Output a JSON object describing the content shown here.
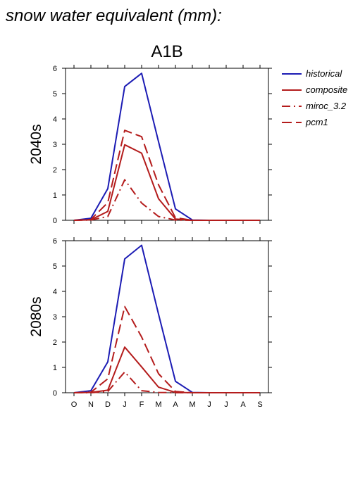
{
  "figure": {
    "title": "snow water equivalent (mm):",
    "scenario": "A1B"
  },
  "legend": [
    {
      "name": "historical",
      "color": "#1c1cb4",
      "dash": "solid"
    },
    {
      "name": "composite",
      "color": "#b41c1c",
      "dash": "solid"
    },
    {
      "name": "miroc_3.2",
      "color": "#b41c1c",
      "dash": "dashdot"
    },
    {
      "name": "pcm1",
      "color": "#b41c1c",
      "dash": "dash"
    }
  ],
  "chart_data": [
    {
      "type": "line",
      "panel_label": "2040s",
      "categories": [
        "O",
        "N",
        "D",
        "J",
        "F",
        "M",
        "A",
        "M",
        "J",
        "J",
        "A",
        "S"
      ],
      "ylim": [
        0,
        6
      ],
      "yticks": [
        0,
        1,
        2,
        3,
        4,
        5,
        6
      ],
      "grid": false,
      "series": [
        {
          "name": "historical",
          "values": [
            0,
            0.08,
            1.25,
            5.28,
            5.8,
            3.1,
            0.45,
            0.01,
            0,
            0,
            0,
            0
          ]
        },
        {
          "name": "composite",
          "values": [
            0,
            0.02,
            0.35,
            2.98,
            2.65,
            0.85,
            0.05,
            0,
            0,
            0,
            0,
            0
          ]
        },
        {
          "name": "miroc_3.2",
          "values": [
            0,
            0.01,
            0.15,
            1.6,
            0.68,
            0.15,
            0.01,
            0,
            0,
            0,
            0,
            0
          ]
        },
        {
          "name": "pcm1",
          "values": [
            0,
            0.03,
            0.7,
            3.55,
            3.3,
            1.4,
            0.1,
            0,
            0,
            0,
            0,
            0
          ]
        }
      ]
    },
    {
      "type": "line",
      "panel_label": "2080s",
      "categories": [
        "O",
        "N",
        "D",
        "J",
        "F",
        "M",
        "A",
        "M",
        "J",
        "J",
        "A",
        "S"
      ],
      "ylim": [
        0,
        6
      ],
      "yticks": [
        0,
        1,
        2,
        3,
        4,
        5,
        6
      ],
      "grid": false,
      "series": [
        {
          "name": "historical",
          "values": [
            0,
            0.08,
            1.22,
            5.28,
            5.82,
            3.1,
            0.45,
            0.01,
            0,
            0,
            0,
            0
          ]
        },
        {
          "name": "composite",
          "values": [
            0,
            0.01,
            0.1,
            1.8,
            1.02,
            0.22,
            0.01,
            0,
            0,
            0,
            0,
            0
          ]
        },
        {
          "name": "miroc_3.2",
          "values": [
            0,
            0,
            0.05,
            0.82,
            0.08,
            0.01,
            0,
            0,
            0,
            0,
            0,
            0
          ]
        },
        {
          "name": "pcm1",
          "values": [
            0,
            0.02,
            0.55,
            3.4,
            2.2,
            0.75,
            0.05,
            0,
            0,
            0,
            0,
            0
          ]
        }
      ]
    }
  ]
}
